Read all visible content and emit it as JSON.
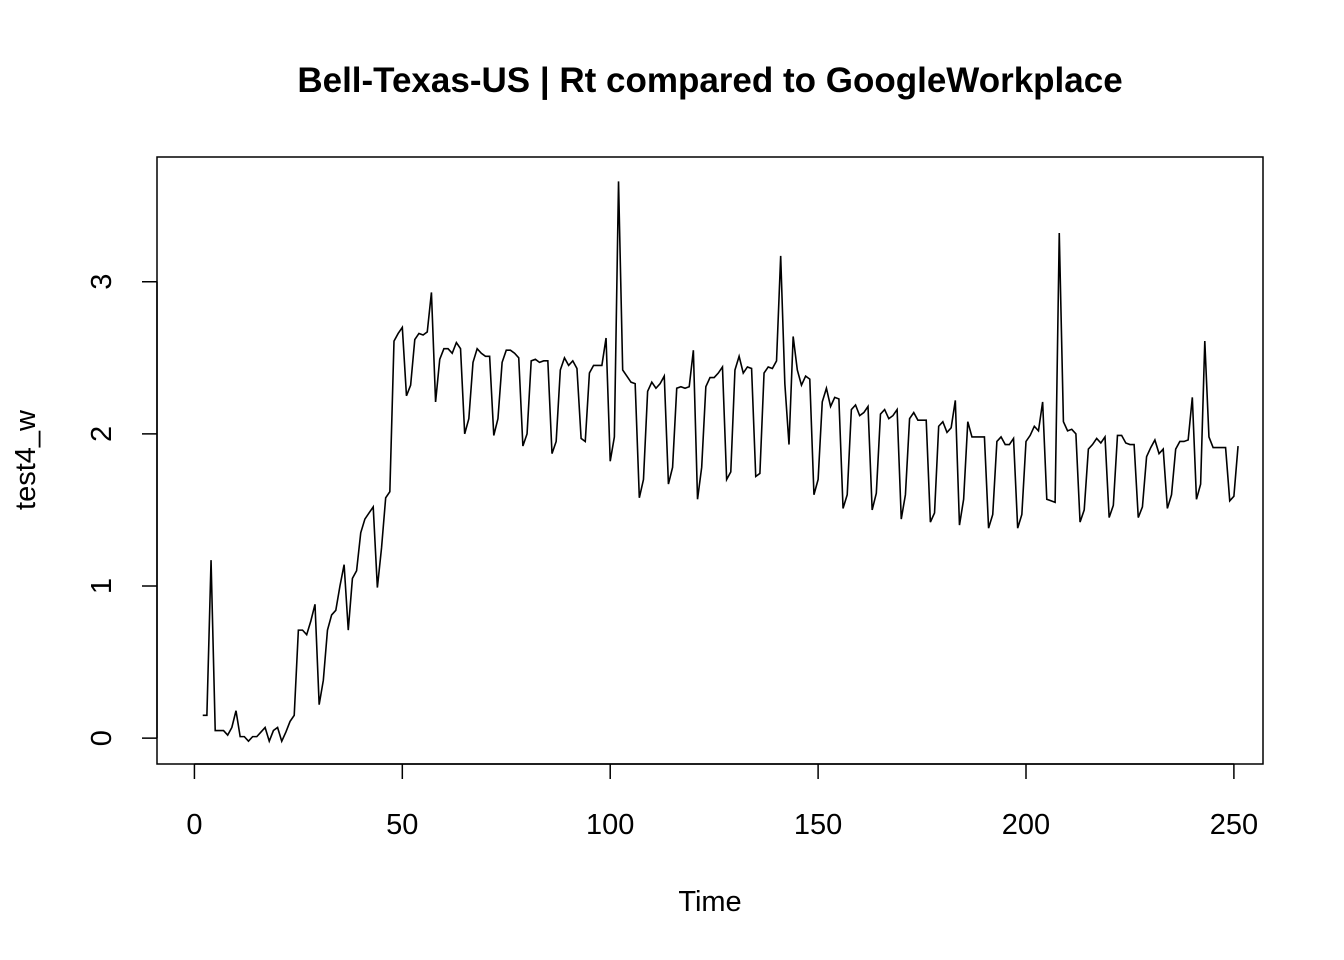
{
  "chart_data": {
    "type": "line",
    "title": "Bell-Texas-US | Rt compared to GoogleWorkplace",
    "xlabel": "Time",
    "ylabel": "test4_w",
    "xlim": [
      -9,
      257
    ],
    "ylim": [
      -0.17,
      3.82
    ],
    "x_ticks": [
      0,
      50,
      100,
      150,
      200,
      250
    ],
    "y_ticks": [
      0,
      1,
      2,
      3
    ],
    "grid": false,
    "legend": "none",
    "line_color": "#000000",
    "series": [
      {
        "x_start": 2,
        "values": [
          0.15,
          0.15,
          1.17,
          0.05,
          0.05,
          0.05,
          0.02,
          0.07,
          0.18,
          0.01,
          0.01,
          -0.02,
          0.01,
          0.01,
          0.04,
          0.07,
          -0.02,
          0.05,
          0.07,
          -0.02,
          0.04,
          0.11,
          0.15,
          0.71,
          0.71,
          0.68,
          0.77,
          0.88,
          0.22,
          0.38,
          0.71,
          0.81,
          0.84,
          1.0,
          1.14,
          0.71,
          1.05,
          1.1,
          1.35,
          1.44,
          1.48,
          1.52,
          0.99,
          1.25,
          1.58,
          1.62,
          2.61,
          2.66,
          2.7,
          2.25,
          2.32,
          2.62,
          2.66,
          2.65,
          2.67,
          2.93,
          2.21,
          2.49,
          2.56,
          2.56,
          2.53,
          2.6,
          2.56,
          2.0,
          2.1,
          2.47,
          2.56,
          2.53,
          2.51,
          2.51,
          1.99,
          2.1,
          2.47,
          2.55,
          2.55,
          2.53,
          2.5,
          1.92,
          2.0,
          2.48,
          2.49,
          2.47,
          2.48,
          2.48,
          1.87,
          1.95,
          2.42,
          2.5,
          2.45,
          2.48,
          2.43,
          1.97,
          1.95,
          2.4,
          2.45,
          2.45,
          2.45,
          2.63,
          1.82,
          1.98,
          3.66,
          2.42,
          2.38,
          2.34,
          2.33,
          1.58,
          1.7,
          2.28,
          2.34,
          2.3,
          2.33,
          2.38,
          1.67,
          1.78,
          2.3,
          2.31,
          2.3,
          2.31,
          2.55,
          1.57,
          1.78,
          2.31,
          2.37,
          2.37,
          2.4,
          2.44,
          1.7,
          1.75,
          2.42,
          2.51,
          2.4,
          2.44,
          2.43,
          1.72,
          1.74,
          2.4,
          2.44,
          2.43,
          2.48,
          3.17,
          2.33,
          1.93,
          2.64,
          2.42,
          2.32,
          2.38,
          2.36,
          1.6,
          1.7,
          2.21,
          2.3,
          2.18,
          2.24,
          2.23,
          1.51,
          1.6,
          2.16,
          2.19,
          2.12,
          2.14,
          2.18,
          1.5,
          1.61,
          2.13,
          2.16,
          2.1,
          2.12,
          2.16,
          1.44,
          1.6,
          2.1,
          2.14,
          2.09,
          2.09,
          2.09,
          1.42,
          1.48,
          2.05,
          2.08,
          2.01,
          2.04,
          2.22,
          1.4,
          1.57,
          2.08,
          1.98,
          1.98,
          1.98,
          1.98,
          1.38,
          1.47,
          1.95,
          1.98,
          1.93,
          1.93,
          1.97,
          1.38,
          1.47,
          1.95,
          1.99,
          2.05,
          2.02,
          2.21,
          1.57,
          1.56,
          1.55,
          3.32,
          2.08,
          2.02,
          2.03,
          2.0,
          1.42,
          1.5,
          1.9,
          1.93,
          1.97,
          1.94,
          1.98,
          1.45,
          1.53,
          1.99,
          1.99,
          1.94,
          1.93,
          1.93,
          1.45,
          1.52,
          1.85,
          1.91,
          1.96,
          1.87,
          1.9,
          1.51,
          1.6,
          1.9,
          1.95,
          1.95,
          1.96,
          2.24,
          1.57,
          1.67,
          2.61,
          1.98,
          1.91,
          1.91,
          1.91,
          1.91,
          1.56,
          1.59,
          1.92
        ]
      }
    ]
  }
}
